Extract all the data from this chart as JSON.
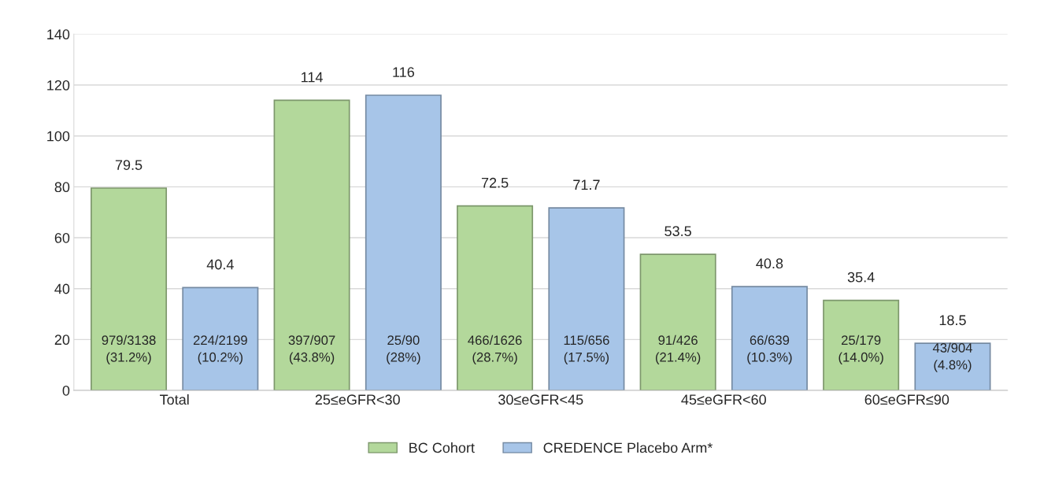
{
  "chart_data": {
    "type": "bar",
    "categories": [
      "Total",
      "25≤eGFR<30",
      "30≤eGFR<45",
      "45≤eGFR<60",
      "60≤eGFR≤90"
    ],
    "series": [
      {
        "name": "BC Cohort",
        "color": "#b3d89b",
        "values": [
          79.5,
          114,
          72.5,
          53.5,
          35.4
        ]
      },
      {
        "name": "CREDENCE Placebo Arm*",
        "color": "#a7c5e8",
        "values": [
          40.4,
          116,
          71.7,
          40.8,
          18.5
        ]
      }
    ],
    "annotations": [
      "979/3138\n(31.2%)",
      "397/907\n(43.8%)",
      "466/1626\n(28.7%)",
      "91/426\n(21.4%)",
      "25/179\n(14.0%)",
      "224/2199\n(10.2%)",
      "25/90\n(28%)",
      "115/656\n(17.5%)",
      "66/639\n(10.3%)",
      "43/904\n(4.8%)"
    ],
    "ylim": [
      0,
      140
    ],
    "yticks": [
      0,
      20,
      40,
      60,
      80,
      100,
      120,
      140
    ],
    "grid": "y",
    "legend": "bottom",
    "data_labels": true
  }
}
